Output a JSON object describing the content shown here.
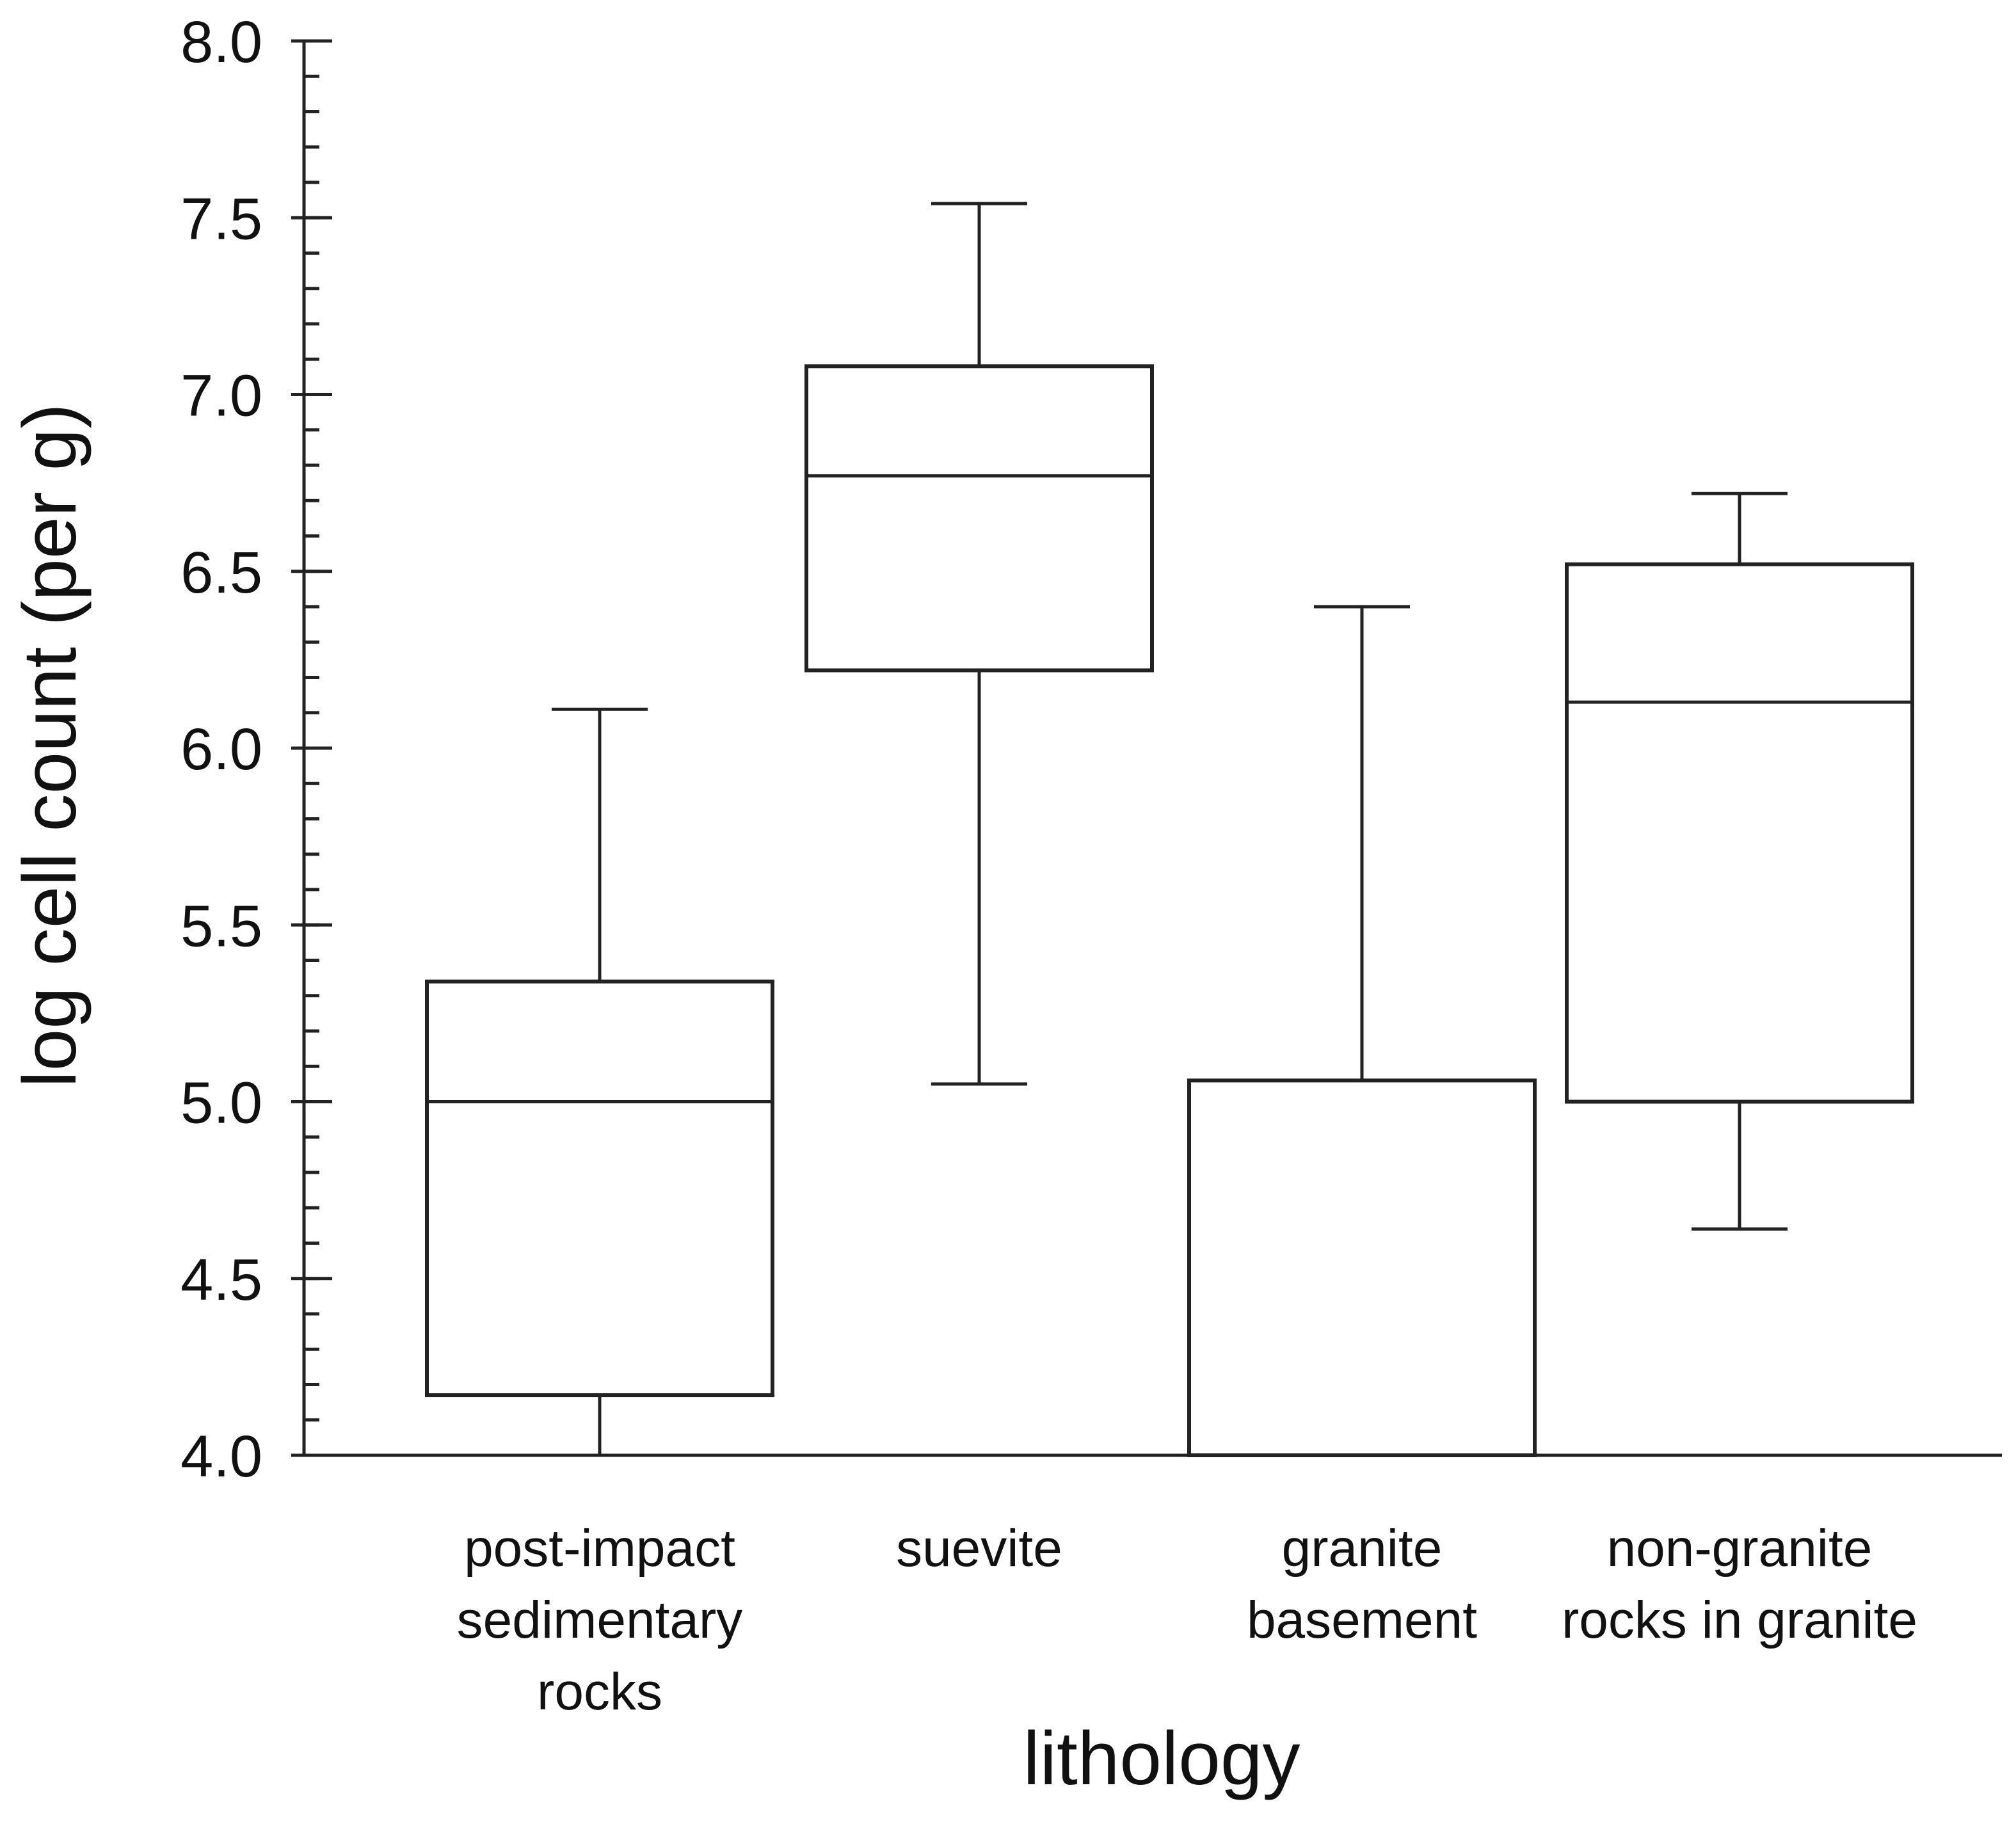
{
  "chart_data": {
    "type": "box",
    "title": "",
    "xlabel": "lithology",
    "ylabel": "log cell count (per g)",
    "ylim": [
      4.0,
      8.0
    ],
    "yticks": [
      "4.0",
      "4.5",
      "5.0",
      "5.5",
      "6.0",
      "6.5",
      "7.0",
      "7.5",
      "8.0"
    ],
    "minor_tick_step": 0.1,
    "grid": false,
    "legend": "none",
    "categories": [
      [
        "post-impact",
        "sedimentary",
        "rocks"
      ],
      [
        "suevite"
      ],
      [
        "granite",
        "basement"
      ],
      [
        "non-granite",
        "rocks in granite"
      ]
    ],
    "boxes": [
      {
        "whisker_low": 4.0,
        "q1": 4.17,
        "median": 5.0,
        "q3": 5.34,
        "whisker_high": 6.11
      },
      {
        "whisker_low": 5.05,
        "q1": 6.22,
        "median": 6.77,
        "q3": 7.08,
        "whisker_high": 7.54
      },
      {
        "whisker_low": 4.0,
        "q1": 4.0,
        "median": null,
        "q3": 5.06,
        "whisker_high": 6.4
      },
      {
        "whisker_low": 4.64,
        "q1": 5.0,
        "median": 6.13,
        "q3": 6.52,
        "whisker_high": 6.72
      }
    ]
  }
}
